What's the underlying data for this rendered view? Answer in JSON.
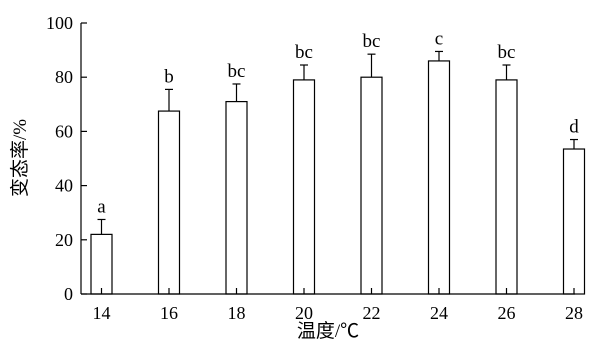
{
  "chart_data": {
    "type": "bar",
    "title": "",
    "xlabel": "温度/℃",
    "ylabel": "变态率/%",
    "categories": [
      "14",
      "16",
      "18",
      "20",
      "22",
      "24",
      "26",
      "28"
    ],
    "values": [
      22,
      67.5,
      71,
      79,
      80,
      86,
      79,
      53.5
    ],
    "errors": [
      5.5,
      8,
      6.5,
      5.5,
      8.5,
      3.5,
      5.5,
      3.5
    ],
    "significance_labels": [
      "a",
      "b",
      "bc",
      "bc",
      "bc",
      "c",
      "bc",
      "d"
    ],
    "ylim": [
      0,
      100
    ],
    "yticks": [
      0,
      20,
      40,
      60,
      80,
      100
    ],
    "grid": false,
    "legend": "none"
  }
}
